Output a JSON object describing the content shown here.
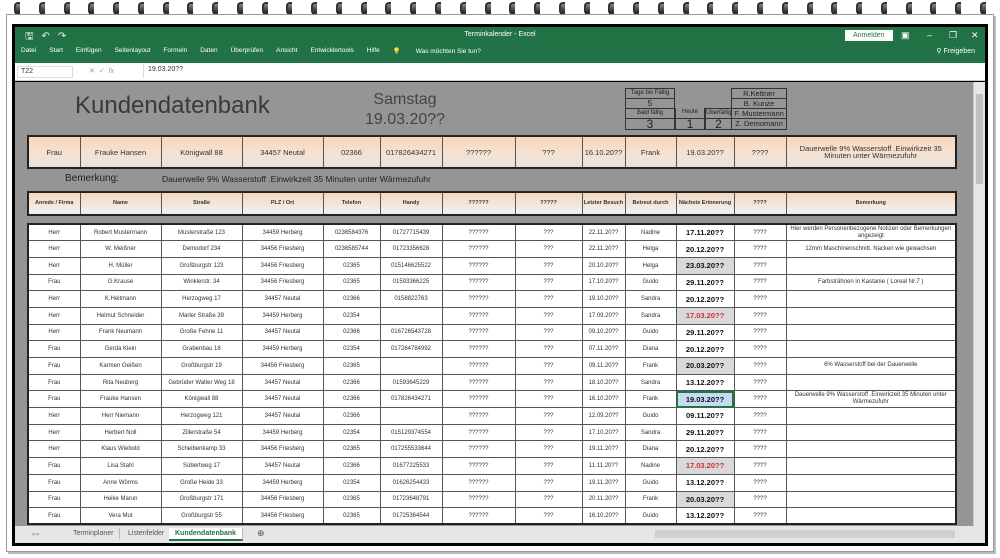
{
  "window": {
    "title": "Terminkalender - Excel",
    "signin": "Anmelden",
    "share": "Freigeben"
  },
  "menu": [
    "Datei",
    "Start",
    "Einfügen",
    "Seitenlayout",
    "Formeln",
    "Daten",
    "Überprüfen",
    "Ansicht",
    "Entwicklertools",
    "Hilfe",
    "Was möchten Sie tun?"
  ],
  "formula": {
    "cell": "T22",
    "value": "19.03.20??"
  },
  "sheet": {
    "title": "Kundendatenbank",
    "weekday": "Samstag",
    "date": "19.03.20??",
    "status": {
      "tage_label": "Tage  bis Fällig",
      "tage_value": "5",
      "bald_label": "Bald fällig",
      "heute_label": "Heute",
      "ueber_label": "Überfällig",
      "bald_value": "3",
      "heute_value": "1",
      "ueber_value": "2"
    },
    "staff": [
      "R.Kettner",
      "B. Kunze",
      "F. Mustermann",
      "Z. Demomann"
    ],
    "selected": [
      "Frau",
      "Frauke Hansen",
      "Königwall 88",
      "34457 Neutal",
      "02366",
      "017826434271",
      "??????",
      "???",
      "16.10.20??",
      "Frank",
      "19.03.20??",
      "????",
      "Dauerwelle 9% Wasserstoff .Einwirkzeit 35 Minuten unter Wärmezufuhr"
    ],
    "remark_label": "Bemerkung:",
    "remark_text": "Dauerwelle 9% Wasserstoff .Einwirkzeit 35 Minuten unter Wärmezufuhr",
    "columns": [
      "Anrede / Firma",
      "Name",
      "Straße",
      "PLZ / Ort",
      "Telefon",
      "Handy",
      "??????",
      "?????",
      "Letzter Besuch",
      "Betreut durch",
      "Nächste Erinnerung",
      "????",
      "Bemerkung"
    ],
    "rows": [
      [
        "Herr",
        "Robert Mustermann",
        "Musterstraße 123",
        "34459 Herberg",
        "0236584376",
        "01727715439",
        "??????",
        "???",
        "22.11.20??",
        "Nadine",
        "17.11.20??",
        "????",
        "Hier werden Personenbezogene Notizen oder Bemerkungen angezeigt",
        "normal"
      ],
      [
        "Herr",
        "W. Meißner",
        "Demodorf 234",
        "34456 Friesberg",
        "0236585744",
        "01723356628",
        "??????",
        "???",
        "22.11.20??",
        "Helga",
        "20.12.20??",
        "????",
        "12mm Maschinenschnitt. Nacken wie gewachsen",
        "normal"
      ],
      [
        "Herr",
        "H. Müller",
        "Großburgstr 123",
        "34456 Friesberg",
        "02365",
        "015146625522",
        "??????",
        "???",
        "20.10.20??",
        "Helga",
        "23.03.20??",
        "????",
        "",
        "soon"
      ],
      [
        "Frau",
        "G.Krause",
        "Winklerstr. 34",
        "34456 Friesberg",
        "02365",
        "01593366225",
        "??????",
        "???",
        "17.10.20??",
        "Guido",
        "29.11.20??",
        "????",
        "Farbsträhnen in Kastanie ( Loreal Nr.7 )",
        "normal"
      ],
      [
        "Herr",
        "K.Heitmann",
        "Herzogweg 17",
        "34457 Neutal",
        "02366",
        "0158822763",
        "??????",
        "???",
        "19.10.20??",
        "Sandra",
        "20.12.20??",
        "????",
        "",
        "normal"
      ],
      [
        "Herr",
        "Helmut Schneider",
        "Marler Straße 39",
        "34459 Herberg",
        "02354",
        "",
        "??????",
        "???",
        "17.09.20??",
        "Sandra",
        "17.03.20??",
        "????",
        "",
        "overdue"
      ],
      [
        "Herr",
        "Frank Neumann",
        "Große Fehne 11",
        "34457 Neutal",
        "02366",
        "016726543728",
        "??????",
        "???",
        "09.10.20??",
        "Guido",
        "29.11.20??",
        "????",
        "",
        "normal"
      ],
      [
        "Frau",
        "Gerda Klein",
        "Grabenbau 18",
        "34459 Herberg",
        "02354",
        "017264784992",
        "??????",
        "???",
        "07.11.20??",
        "Diana",
        "20.12.20??",
        "????",
        "",
        "normal"
      ],
      [
        "Frau",
        "Karmen Geißen",
        "Großburgstr 19",
        "34456 Friesberg",
        "02365",
        "",
        "??????",
        "???",
        "09.11.20??",
        "Frank",
        "20.03.20??",
        "????",
        "6% Wasserstoff bei der Dauerwelle",
        "soon"
      ],
      [
        "Frau",
        "Rita Neuberg",
        "Gebrüder Walter Weg 18",
        "34457 Neutal",
        "02366",
        "01593645229",
        "??????",
        "???",
        "18.10.20??",
        "Sandra",
        "13.12.20??",
        "????",
        "",
        "normal"
      ],
      [
        "Frau",
        "Frauke Hansen",
        "Königwall 88",
        "34457 Neutal",
        "02366",
        "017826434271",
        "??????",
        "???",
        "16.10.20??",
        "Frank",
        "19.03.20??",
        "????",
        "Dauerwelle 9% Wasserstoff .Einwirkzeit 35 Minuten unter Wärmezufuhr",
        "selected"
      ],
      [
        "Herr",
        "Herr Niemann",
        "Herzogweg 121",
        "34457 Neutal",
        "02366",
        "",
        "??????",
        "???",
        "12.09.20??",
        "Guido",
        "09.11.20??",
        "????",
        "",
        "normal"
      ],
      [
        "Herr",
        "Herbert Noll",
        "Zillerstraße 54",
        "34459 Herberg",
        "02354",
        "015129374554",
        "??????",
        "???",
        "17.10.20??",
        "Sandra",
        "29.11.20??",
        "????",
        "",
        "normal"
      ],
      [
        "Herr",
        "Klaus Wiebold",
        "Scheibenkamp 33",
        "34456 Friesberg",
        "02365",
        "017255533644",
        "??????",
        "???",
        "19.11.20??",
        "Diana",
        "20.12.20??",
        "????",
        "",
        "normal"
      ],
      [
        "Frau",
        "Lisa Stahl",
        "Sobertweg 17",
        "34457 Neutal",
        "02366",
        "01677225533",
        "??????",
        "???",
        "11.11.20??",
        "Nadine",
        "17.03.20??",
        "????",
        "",
        "overdue"
      ],
      [
        "Frau",
        "Anne Wörms",
        "Große Heide 33",
        "34459 Herberg",
        "02354",
        "01626254433",
        "??????",
        "???",
        "19.11.20??",
        "Guido",
        "13.12.20??",
        "????",
        "",
        "normal"
      ],
      [
        "Frau",
        "Heike Marun",
        "Großburgstr 171",
        "34456 Friesberg",
        "02365",
        "01723648791",
        "??????",
        "???",
        "20.11.20??",
        "Frank",
        "20.03.20??",
        "????",
        "",
        "soon"
      ],
      [
        "Frau",
        "Vera Mut",
        "Großburgstr 55",
        "34456 Friesberg",
        "02365",
        "01725364544",
        "??????",
        "???",
        "16.10.20??",
        "Guido",
        "13.12.20??",
        "????",
        "",
        "normal"
      ]
    ]
  },
  "tabs": [
    "Terminplaner",
    "Listenfelder",
    "Kundendatenbank"
  ],
  "active_tab": "Kundendatenbank",
  "colors": {
    "excel_green": "#217346",
    "sheet_bg": "#959595",
    "header_peach": "#f8d7bd",
    "overdue_red": "#d32f2f",
    "due_gray": "#d9d9d9",
    "selection_blue": "#c6daf2"
  }
}
